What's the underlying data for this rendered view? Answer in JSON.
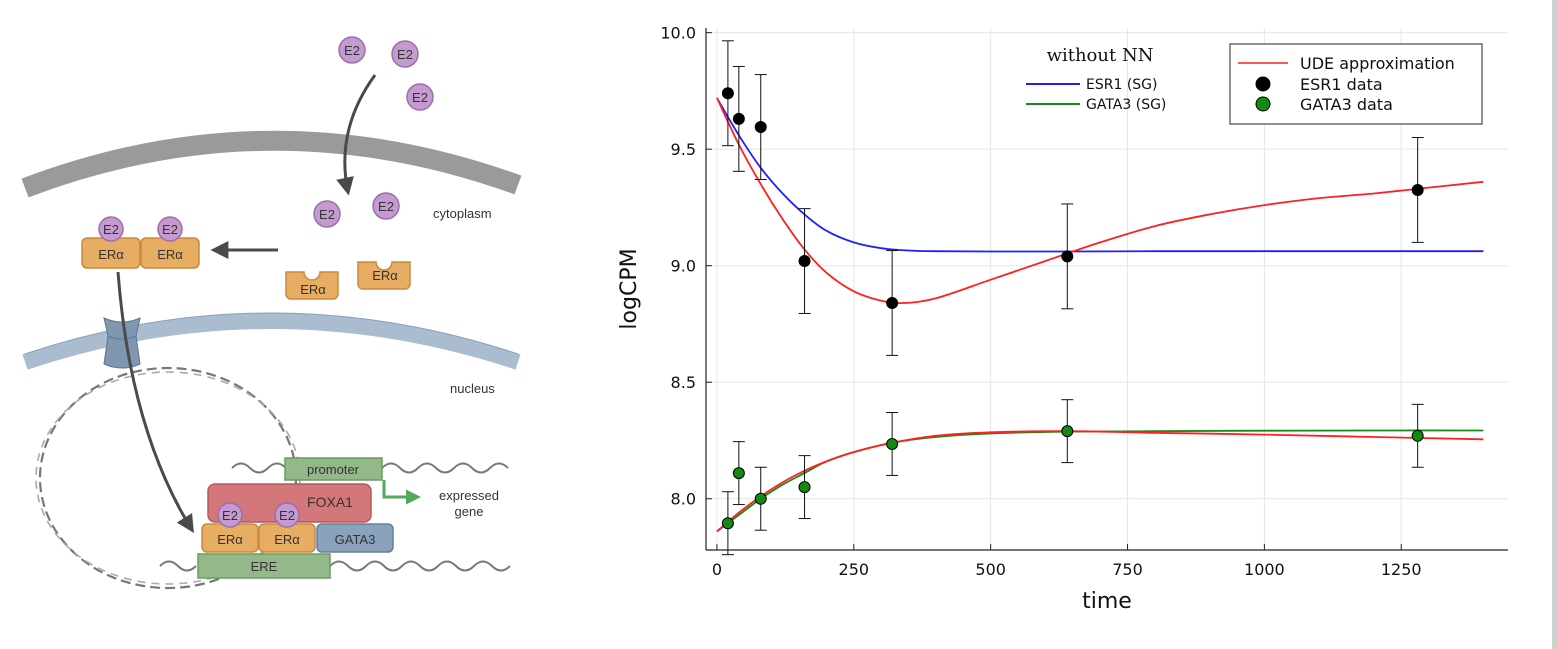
{
  "diagram": {
    "e2": "E2",
    "era": "ERα",
    "cytoplasm": "cytoplasm",
    "nucleus": "nucleus",
    "promoter": "promoter",
    "foxa1": "FOXA1",
    "gata3": "GATA3",
    "ere": "ERE",
    "expressed": "expressed",
    "gene": "gene"
  },
  "chart_data": {
    "type": "line",
    "xlabel": "time",
    "ylabel": "logCPM",
    "xlim": [
      -20,
      1445
    ],
    "ylim": [
      7.78,
      10.02
    ],
    "xticks": [
      0,
      250,
      500,
      750,
      1000,
      1250
    ],
    "yticks": [
      8.0,
      8.5,
      9.0,
      9.5,
      10.0
    ],
    "ytick_labels": [
      "8.0",
      "8.5",
      "9.0",
      "9.5",
      "10.0"
    ],
    "grid": true,
    "annotation": "without NN",
    "legend_inner": [
      {
        "name": "ESR1 (SG)",
        "color": "#1f1fff"
      },
      {
        "name": "GATA3 (SG)",
        "color": "#1a8a1a"
      }
    ],
    "legend_outer": [
      {
        "name": "UDE approximation",
        "color": "#ff2020",
        "kind": "line"
      },
      {
        "name": "ESR1 data",
        "color": "#000000",
        "kind": "marker"
      },
      {
        "name": "GATA3 data",
        "color": "#138a13",
        "kind": "marker"
      }
    ],
    "series": [
      {
        "name": "ESR1 data",
        "kind": "points",
        "color": "#000000",
        "x": [
          20,
          40,
          80,
          160,
          320,
          640,
          1280
        ],
        "y": [
          9.74,
          9.63,
          9.595,
          9.02,
          8.84,
          9.04,
          9.325
        ],
        "err": [
          0.225,
          0.225,
          0.225,
          0.225,
          0.225,
          0.225,
          0.225
        ]
      },
      {
        "name": "GATA3 data",
        "kind": "points",
        "color": "#138a13",
        "x": [
          20,
          40,
          80,
          160,
          320,
          640,
          1280
        ],
        "y": [
          7.895,
          8.11,
          8.0,
          8.05,
          8.235,
          8.29,
          8.27
        ],
        "err": [
          0.135,
          0.135,
          0.135,
          0.135,
          0.135,
          0.135,
          0.135
        ]
      },
      {
        "name": "ESR1 (SG)",
        "kind": "line",
        "color": "#1f1fff",
        "x": [
          0,
          40,
          80,
          120,
          160,
          200,
          250,
          300,
          350,
          400,
          500,
          640,
          800,
          1000,
          1200,
          1400
        ],
        "y": [
          9.72,
          9.56,
          9.42,
          9.31,
          9.22,
          9.15,
          9.1,
          9.075,
          9.065,
          9.062,
          9.061,
          9.061,
          9.062,
          9.062,
          9.062,
          9.062
        ]
      },
      {
        "name": "GATA3 (SG)",
        "kind": "line",
        "color": "#1a8a1a",
        "x": [
          0,
          40,
          80,
          120,
          160,
          200,
          250,
          320,
          400,
          500,
          640,
          800,
          1000,
          1200,
          1400
        ],
        "y": [
          7.86,
          7.93,
          8.0,
          8.06,
          8.11,
          8.16,
          8.2,
          8.24,
          8.265,
          8.28,
          8.288,
          8.29,
          8.292,
          8.293,
          8.293
        ]
      },
      {
        "name": "UDE approximation",
        "kind": "line",
        "color": "#ff2020",
        "x": [
          0,
          40,
          80,
          120,
          160,
          200,
          250,
          300,
          340,
          400,
          500,
          600,
          700,
          800,
          900,
          1000,
          1100,
          1200,
          1300,
          1400
        ],
        "y": [
          9.72,
          9.52,
          9.35,
          9.2,
          9.07,
          8.97,
          8.89,
          8.85,
          8.84,
          8.86,
          8.94,
          9.02,
          9.1,
          9.17,
          9.22,
          9.26,
          9.29,
          9.31,
          9.335,
          9.36
        ]
      },
      {
        "name": "UDE approximation (GATA3)",
        "kind": "line",
        "color": "#ff2020",
        "x": [
          0,
          40,
          80,
          120,
          160,
          200,
          250,
          320,
          400,
          500,
          640,
          800,
          1000,
          1200,
          1400
        ],
        "y": [
          7.86,
          7.94,
          8.01,
          8.07,
          8.12,
          8.16,
          8.2,
          8.24,
          8.27,
          8.285,
          8.29,
          8.283,
          8.275,
          8.265,
          8.255
        ]
      }
    ]
  }
}
